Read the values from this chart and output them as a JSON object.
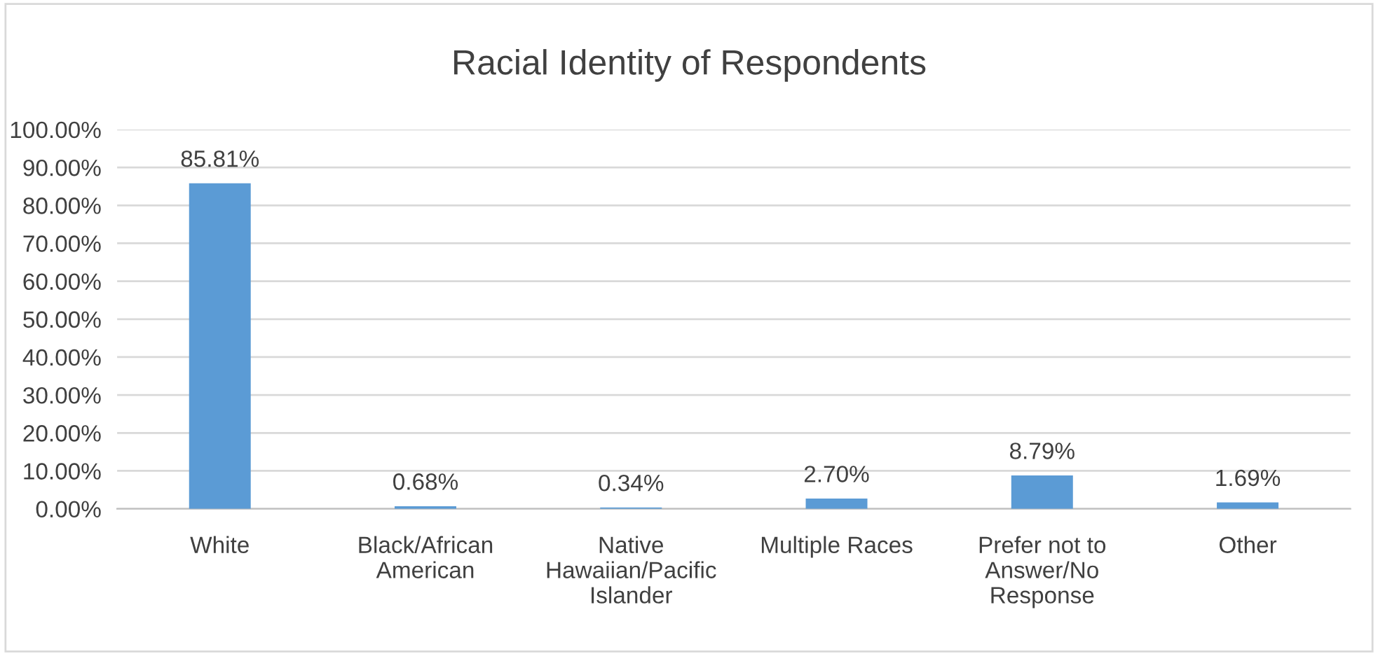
{
  "chart_data": {
    "type": "bar",
    "title": "Racial Identity of Respondents",
    "categories": [
      "White",
      "Black/African\nAmerican",
      "Native\nHawaiian/Pacific\nIslander",
      "Multiple Races",
      "Prefer not to\nAnswer/No\nResponse",
      "Other"
    ],
    "values": [
      85.81,
      0.68,
      0.34,
      2.7,
      8.79,
      1.69
    ],
    "value_labels": [
      "85.81%",
      "0.68%",
      "0.34%",
      "2.70%",
      "8.79%",
      "1.69%"
    ],
    "color": "#5b9bd5",
    "ylim": [
      0,
      100
    ],
    "yticks": [
      {
        "value": 0,
        "label": "0.00%"
      },
      {
        "value": 10,
        "label": "10.00%"
      },
      {
        "value": 20,
        "label": "20.00%"
      },
      {
        "value": 30,
        "label": "30.00%"
      },
      {
        "value": 40,
        "label": "40.00%"
      },
      {
        "value": 50,
        "label": "50.00%"
      },
      {
        "value": 60,
        "label": "60.00%"
      },
      {
        "value": 70,
        "label": "70.00%"
      },
      {
        "value": 80,
        "label": "80.00%"
      },
      {
        "value": 90,
        "label": "90.00%"
      },
      {
        "value": 100,
        "label": "100.00%"
      }
    ],
    "grid": "y"
  }
}
